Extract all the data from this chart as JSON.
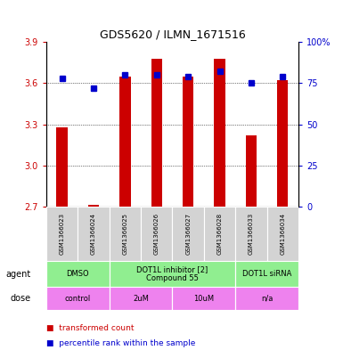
{
  "title": "GDS5620 / ILMN_1671516",
  "samples": [
    "GSM1366023",
    "GSM1366024",
    "GSM1366025",
    "GSM1366026",
    "GSM1366027",
    "GSM1366028",
    "GSM1366033",
    "GSM1366034"
  ],
  "red_values": [
    3.28,
    2.71,
    3.65,
    3.78,
    3.65,
    3.78,
    3.22,
    3.62
  ],
  "blue_values": [
    78,
    72,
    80,
    80,
    79,
    82,
    75,
    79
  ],
  "ylim_left": [
    2.7,
    3.9
  ],
  "ylim_right": [
    0,
    100
  ],
  "yticks_left": [
    2.7,
    3.0,
    3.3,
    3.6,
    3.9
  ],
  "yticks_right": [
    0,
    25,
    50,
    75,
    100
  ],
  "bar_bottom": 2.7,
  "bar_color": "#cc0000",
  "dot_color": "#0000cc",
  "agent_groups": [
    {
      "label": "DMSO",
      "start": 0,
      "end": 2,
      "color": "#90ee90"
    },
    {
      "label": "DOT1L inhibitor [2]\nCompound 55",
      "start": 2,
      "end": 6,
      "color": "#90ee90"
    },
    {
      "label": "DOT1L siRNA",
      "start": 6,
      "end": 8,
      "color": "#90ee90"
    }
  ],
  "dose_groups": [
    {
      "label": "control",
      "start": 0,
      "end": 2,
      "color": "#ee82ee"
    },
    {
      "label": "2uM",
      "start": 2,
      "end": 4,
      "color": "#ee82ee"
    },
    {
      "label": "10uM",
      "start": 4,
      "end": 6,
      "color": "#ee82ee"
    },
    {
      "label": "n/a",
      "start": 6,
      "end": 8,
      "color": "#ee82ee"
    }
  ],
  "agent_dividers": [
    0,
    2,
    6,
    8
  ],
  "dose_dividers": [
    0,
    2,
    4,
    6,
    8
  ],
  "bar_width": 0.35,
  "grid_yticks": [
    3.0,
    3.3,
    3.6
  ],
  "title_fontsize": 9,
  "tick_fontsize": 7,
  "sample_fontsize": 5,
  "label_fontsize": 7,
  "cell_fontsize": 6
}
